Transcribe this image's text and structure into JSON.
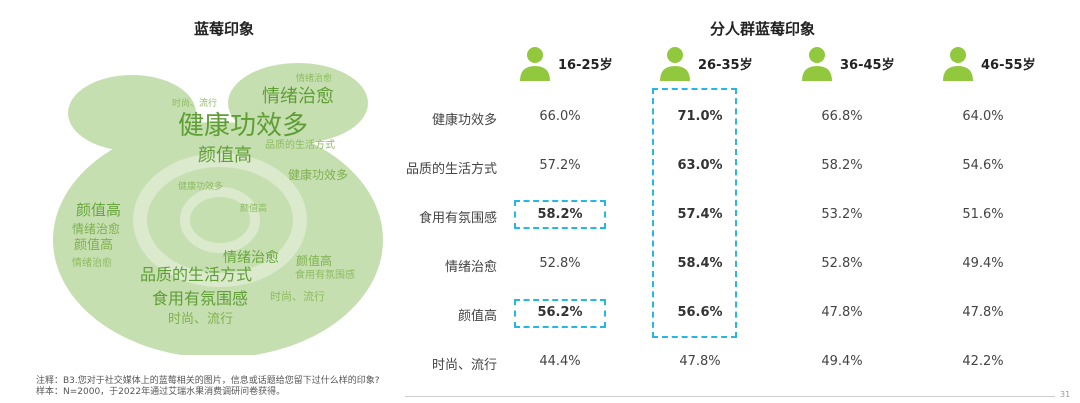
{
  "left_title": "蓝莓印象",
  "right_title": "分人群蓝莓印象",
  "wordcloud": {
    "words": [
      "健康功效多",
      "情绪治愈",
      "颜值高",
      "健康功效多",
      "颜值高",
      "情绪治愈",
      "颜值高",
      "情绪治愈",
      "品质的生活方式",
      "颜值高",
      "食用有氛围感",
      "时尚、流行",
      "时尚、流行",
      "健康功效多",
      "情绪治愈",
      "食用有氛围感",
      "品质的生活方式",
      "颜值高",
      "时尚、流行",
      "情绪治愈"
    ]
  },
  "colors": {
    "accent_green": "#92c83e",
    "highlight_box": "#27b7e6",
    "cloud_green": "#a9cc8f",
    "cloud_dark": "#5f9e35"
  },
  "chart_data": {
    "type": "table",
    "title": "分人群蓝莓印象",
    "columns": [
      "16-25岁",
      "26-35岁",
      "36-45岁",
      "46-55岁"
    ],
    "rows": [
      {
        "label": "健康功效多",
        "values": [
          "66.0%",
          "71.0%",
          "66.8%",
          "64.0%"
        ]
      },
      {
        "label": "品质的生活方式",
        "values": [
          "57.2%",
          "63.0%",
          "58.2%",
          "54.6%"
        ]
      },
      {
        "label": "食用有氛围感",
        "values": [
          "58.2%",
          "57.4%",
          "53.2%",
          "51.6%"
        ]
      },
      {
        "label": "情绪治愈",
        "values": [
          "52.8%",
          "58.4%",
          "52.8%",
          "49.4%"
        ]
      },
      {
        "label": "颜值高",
        "values": [
          "56.2%",
          "56.6%",
          "47.8%",
          "47.8%"
        ]
      },
      {
        "label": "时尚、流行",
        "values": [
          "44.4%",
          "47.8%",
          "49.4%",
          "42.2%"
        ]
      }
    ],
    "highlighted": "bold values in 26-35岁 column (first five rows); 16-25岁 boxed for 食用有氛围感 and 颜值高"
  },
  "notes": {
    "line1": "注释：B3.您对于社交媒体上的蓝莓相关的图片，信息或话题给您留下过什么样的印象?",
    "line2": "样本：N=2000，于2022年通过艾瑞水果消费调研问卷获得。"
  },
  "page_number": "31"
}
